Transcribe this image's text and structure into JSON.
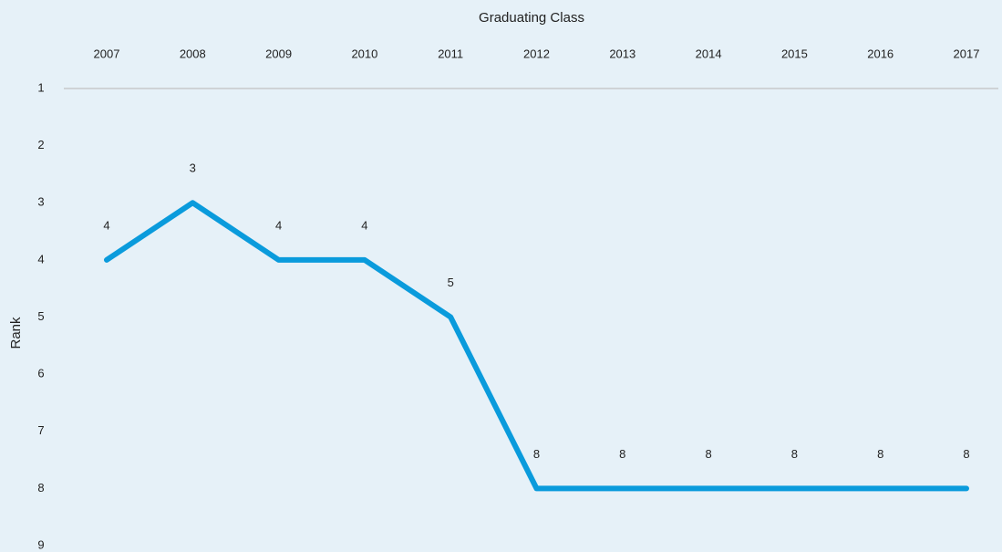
{
  "chart_data": {
    "type": "line",
    "title": "Graduating Class",
    "y_label": "Rank",
    "categories": [
      "2007",
      "2008",
      "2009",
      "2010",
      "2011",
      "2012",
      "2013",
      "2014",
      "2015",
      "2016",
      "2017"
    ],
    "values": [
      4,
      3,
      4,
      4,
      5,
      8,
      8,
      8,
      8,
      8,
      8
    ],
    "color": "#0a9bdc",
    "ylim": [
      1,
      9
    ],
    "y_inverted": true,
    "yticks": [
      1,
      2,
      3,
      4,
      5,
      6,
      7,
      8,
      9
    ],
    "x_axis_position": "top",
    "grid": false,
    "data_labels": true
  }
}
